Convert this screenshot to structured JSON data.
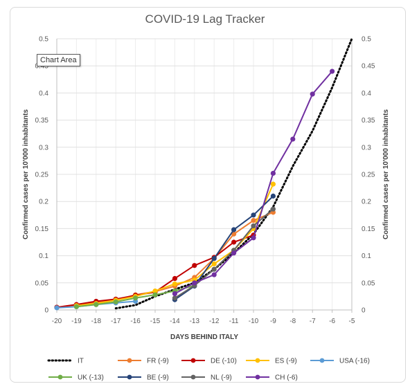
{
  "chart_data": {
    "type": "line",
    "title": "COVID-19 Lag Tracker",
    "xlabel": "DAYS BEHIND ITALY",
    "ylabel_left": "Confirmed  cases per 10'000 inhabitants",
    "ylabel_right": "Confirmed cases per 10'000 inhabitants",
    "xlim": [
      -20,
      -5
    ],
    "ylim": [
      0,
      0.5
    ],
    "x_ticks": [
      "-20",
      "-19",
      "-18",
      "-17",
      "-16",
      "-15",
      "-14",
      "-13",
      "-12",
      "-11",
      "-10",
      "-9",
      "-8",
      "-7",
      "-6",
      "-5"
    ],
    "y_ticks": [
      "0",
      "0.05",
      "0.1",
      "0.15",
      "0.2",
      "0.25",
      "0.3",
      "0.35",
      "0.4",
      "0.45",
      "0.5"
    ],
    "grid": true,
    "legend_position": "bottom",
    "series": [
      {
        "name": "IT",
        "color": "#000000",
        "dotted": true,
        "markers": false,
        "x": [
          -17,
          -16,
          -15,
          -14,
          -13,
          -12,
          -11,
          -10,
          -9,
          -8,
          -7,
          -6,
          -5
        ],
        "y": [
          0.003,
          0.009,
          0.025,
          0.038,
          0.05,
          0.075,
          0.105,
          0.14,
          0.19,
          0.265,
          0.33,
          0.41,
          0.5
        ]
      },
      {
        "name": "FR (-9)",
        "color": "#ED7D31",
        "x": [
          -20,
          -19,
          -18,
          -17,
          -16,
          -15,
          -14,
          -13,
          -12,
          -11,
          -10,
          -9
        ],
        "y": [
          0.005,
          0.009,
          0.014,
          0.018,
          0.028,
          0.034,
          0.044,
          0.06,
          0.095,
          0.14,
          0.165,
          0.18
        ]
      },
      {
        "name": "DE (-10)",
        "color": "#C00000",
        "x": [
          -20,
          -19,
          -18,
          -17,
          -16,
          -15,
          -14,
          -13,
          -12,
          -11,
          -10
        ],
        "y": [
          0.005,
          0.01,
          0.016,
          0.02,
          0.027,
          0.033,
          0.058,
          0.082,
          0.097,
          0.125,
          0.138
        ]
      },
      {
        "name": "ES (-9)",
        "color": "#FFC000",
        "x": [
          -19,
          -18,
          -17,
          -16,
          -15,
          -14,
          -13,
          -12,
          -11,
          -10,
          -9
        ],
        "y": [
          0.008,
          0.012,
          0.018,
          0.025,
          0.035,
          0.048,
          0.055,
          0.085,
          0.11,
          0.15,
          0.232
        ]
      },
      {
        "name": "USA (-16)",
        "color": "#5B9BD5",
        "x": [
          -20,
          -19,
          -18,
          -17,
          -16
        ],
        "y": [
          0.004,
          0.006,
          0.01,
          0.013,
          0.016
        ]
      },
      {
        "name": "UK (-13)",
        "color": "#70AD47",
        "x": [
          -19,
          -18,
          -17,
          -16,
          -15,
          -14,
          -13
        ],
        "y": [
          0.006,
          0.01,
          0.015,
          0.022,
          0.028,
          0.035,
          0.045
        ]
      },
      {
        "name": "BE (-9)",
        "color": "#264478",
        "x": [
          -14,
          -13,
          -12,
          -11,
          -10,
          -9
        ],
        "y": [
          0.019,
          0.044,
          0.095,
          0.148,
          0.175,
          0.21
        ]
      },
      {
        "name": "NL (-9)",
        "color": "#636363",
        "x": [
          -14,
          -13,
          -12,
          -11,
          -10,
          -9
        ],
        "y": [
          0.022,
          0.045,
          0.075,
          0.11,
          0.155,
          0.186
        ]
      },
      {
        "name": "CH (-6)",
        "color": "#7030A0",
        "x": [
          -14,
          -13,
          -12,
          -11,
          -10,
          -9,
          -8,
          -7,
          -6
        ],
        "y": [
          0.03,
          0.05,
          0.065,
          0.105,
          0.133,
          0.252,
          0.315,
          0.398,
          0.44
        ]
      }
    ]
  },
  "tooltip": "Chart Area"
}
